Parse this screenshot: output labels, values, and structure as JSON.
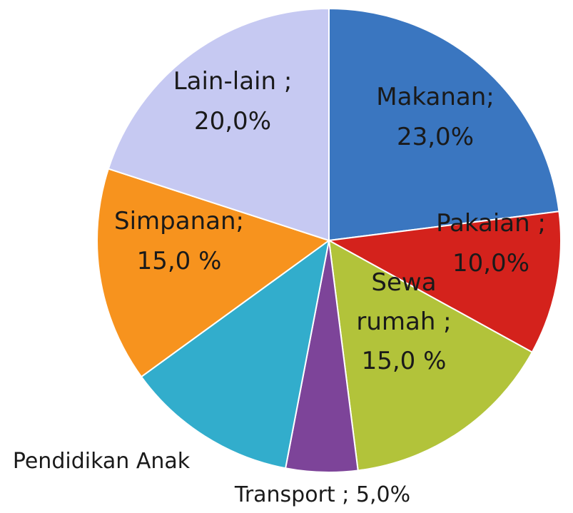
{
  "chart_data": {
    "type": "pie",
    "slices": [
      {
        "name": "Makanan",
        "value": 23.0,
        "label_lines": [
          "Makanan;",
          "23,0%"
        ],
        "color": "#3a76c0"
      },
      {
        "name": "Pakaian",
        "value": 10.0,
        "label_lines": [
          "Pakaian ;",
          "10,0%"
        ],
        "color": "#d4221c"
      },
      {
        "name": "Sewa rumah",
        "value": 15.0,
        "label_lines": [
          "Sewa",
          "rumah ;",
          "15,0 %"
        ],
        "color": "#b2c33a"
      },
      {
        "name": "Transport",
        "value": 5.0,
        "label_lines": [
          "Transport ; 5,0%"
        ],
        "color": "#7d4499"
      },
      {
        "name": "Pendidikan Anak",
        "value": 12.0,
        "label_lines": [
          "Pendidikan Anak"
        ],
        "color": "#32adcc"
      },
      {
        "name": "Simpanan",
        "value": 15.0,
        "label_lines": [
          "Simpanan;",
          "15,0 %"
        ],
        "color": "#f7931e"
      },
      {
        "name": "Lain-lain",
        "value": 20.0,
        "label_lines": [
          "Lain-lain ;",
          "20,0%"
        ],
        "color": "#c6c9f2"
      }
    ],
    "start_angle_deg": 0,
    "direction": "clockwise",
    "legend": "none"
  }
}
